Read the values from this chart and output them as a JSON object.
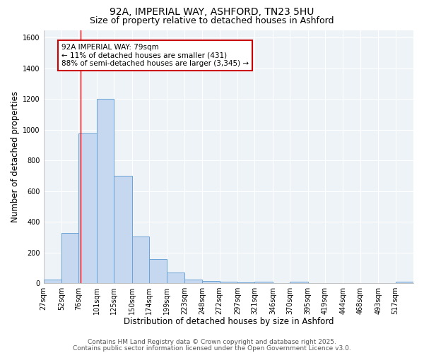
{
  "title_line1": "92A, IMPERIAL WAY, ASHFORD, TN23 5HU",
  "title_line2": "Size of property relative to detached houses in Ashford",
  "xlabel": "Distribution of detached houses by size in Ashford",
  "ylabel": "Number of detached properties",
  "bar_edges": [
    27,
    52,
    76,
    101,
    125,
    150,
    174,
    199,
    223,
    248,
    272,
    297,
    321,
    346,
    370,
    395,
    419,
    444,
    468,
    493,
    517,
    542
  ],
  "bar_heights": [
    25,
    325,
    975,
    1200,
    700,
    305,
    155,
    70,
    25,
    15,
    10,
    5,
    10,
    0,
    10,
    0,
    0,
    0,
    0,
    0,
    10
  ],
  "bar_labels": [
    "27sqm",
    "52sqm",
    "76sqm",
    "101sqm",
    "125sqm",
    "150sqm",
    "174sqm",
    "199sqm",
    "223sqm",
    "248sqm",
    "272sqm",
    "297sqm",
    "321sqm",
    "346sqm",
    "370sqm",
    "395sqm",
    "419sqm",
    "444sqm",
    "468sqm",
    "493sqm",
    "517sqm"
  ],
  "bar_color": "#c5d8f0",
  "bar_edge_color": "#6ba3d6",
  "red_line_x": 79,
  "ylim": [
    0,
    1650
  ],
  "yticks": [
    0,
    200,
    400,
    600,
    800,
    1000,
    1200,
    1400,
    1600
  ],
  "annotation_text": "92A IMPERIAL WAY: 79sqm\n← 11% of detached houses are smaller (431)\n88% of semi-detached houses are larger (3,345) →",
  "annotation_box_color": "#ffffff",
  "annotation_box_edge": "#cc0000",
  "footer_line1": "Contains HM Land Registry data © Crown copyright and database right 2025.",
  "footer_line2": "Contains public sector information licensed under the Open Government Licence v3.0.",
  "background_color": "#ffffff",
  "plot_bg_color": "#eef3f8",
  "grid_color": "#ffffff",
  "title_fontsize": 10,
  "subtitle_fontsize": 9,
  "axis_label_fontsize": 8.5,
  "tick_fontsize": 7,
  "footer_fontsize": 6.5,
  "annotation_fontsize": 7.5
}
